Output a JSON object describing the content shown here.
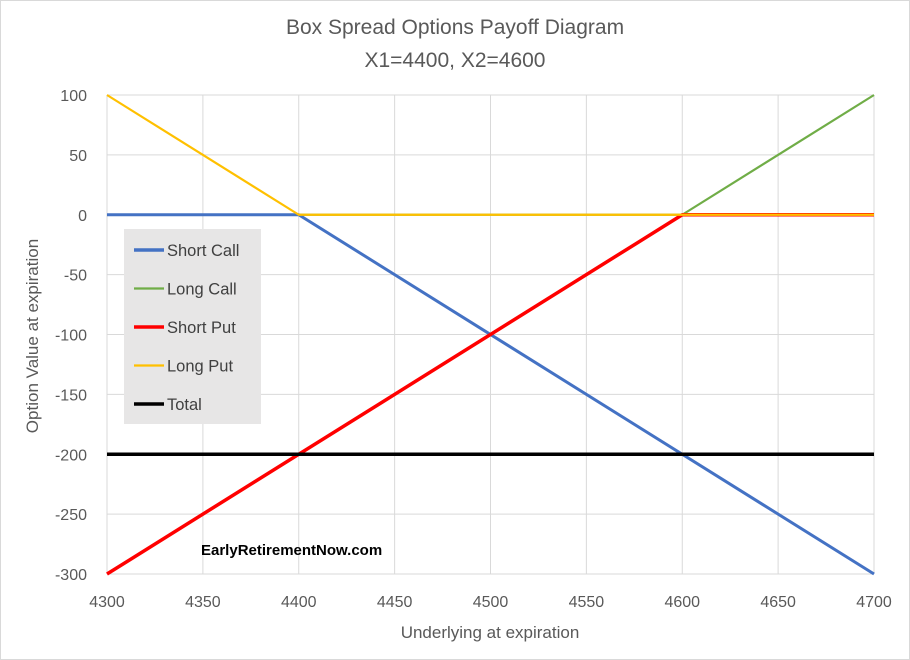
{
  "chart_data": {
    "type": "line",
    "title": "Box Spread Options Payoff Diagram",
    "subtitle": "X1=4400, X2=4600",
    "xlabel": "Underlying  at expiration",
    "ylabel": "Option Value at expiration",
    "xlim": [
      4300,
      4700
    ],
    "ylim": [
      -300,
      100
    ],
    "x_ticks": [
      4300,
      4350,
      4400,
      4450,
      4500,
      4550,
      4600,
      4650,
      4700
    ],
    "y_ticks": [
      100,
      50,
      0,
      -50,
      -100,
      -150,
      -200,
      -250,
      -300
    ],
    "grid": true,
    "legend_position": "left",
    "watermark": "EarlyRetirementNow.com",
    "series": [
      {
        "name": "Short Call",
        "color": "#4472c4",
        "x": [
          4300,
          4400,
          4700
        ],
        "y": [
          0,
          0,
          -300
        ]
      },
      {
        "name": "Long Call",
        "color": "#70ad47",
        "x": [
          4300,
          4600,
          4700
        ],
        "y": [
          0,
          0,
          100
        ]
      },
      {
        "name": "Short Put",
        "color": "#ff0000",
        "x": [
          4300,
          4600,
          4700
        ],
        "y": [
          -300,
          0,
          0
        ]
      },
      {
        "name": "Long Put",
        "color": "#ffc000",
        "x": [
          4300,
          4400,
          4700
        ],
        "y": [
          100,
          0,
          0
        ]
      },
      {
        "name": "Total",
        "color": "#000000",
        "x": [
          4300,
          4700
        ],
        "y": [
          -200,
          -200
        ]
      }
    ]
  }
}
